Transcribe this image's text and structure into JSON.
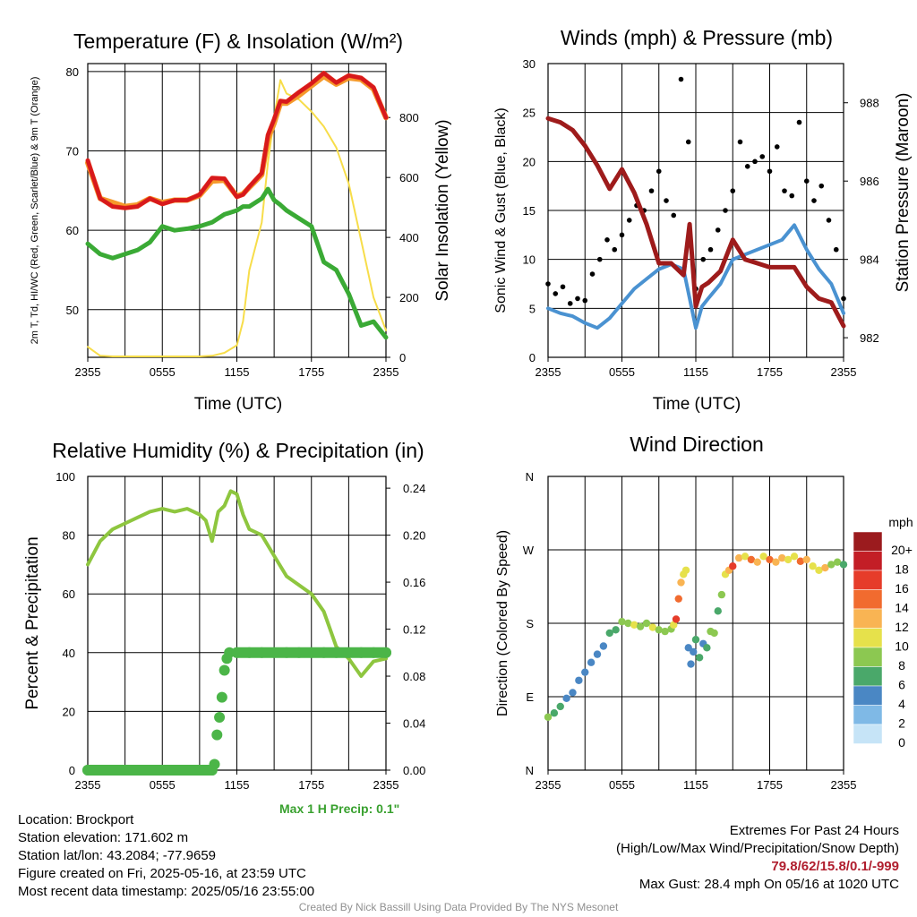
{
  "station": {
    "location": "Location: Brockport",
    "elevation": "Station elevation: 171.602 m",
    "latlon": "Station lat/lon: 43.2084; -77.9659",
    "created": "Figure created on Fri, 2025-05-16, at 23:59 UTC",
    "recent": "Most recent data timestamp: 2025/05/16 23:55:00"
  },
  "extremes": {
    "title": "Extremes For Past 24 Hours",
    "subtitle": "(High/Low/Max Wind/Precipitation/Snow Depth)",
    "values": "79.8/62/15.8/0.1/-999",
    "gust": "Max Gust: 28.4 mph On 05/16 at 1020 UTC"
  },
  "credit": "Created By Nick Bassill Using Data Provided By The NYS Mesonet",
  "colors": {
    "temp": "#d7191c",
    "dew": "#3aaa35",
    "hiwc": "#e8341c",
    "t9": "#f59a2c",
    "solar": "#f7dd4a",
    "wind": "#4a92d1",
    "gust": "#000000",
    "pressure": "#9e1b1b",
    "rh": "#8ec63f",
    "precip": "#4bb548",
    "extremes": "#b01e2e"
  },
  "chart_data": [
    {
      "type": "line",
      "title": "Temperature (F) & Insolation (W/m²)",
      "xlabel": "Time (UTC)",
      "ylabel_left": "2m T, Td, HI/WC (Red, Green, Scarlet/Blue) & 9m T (Orange)",
      "ylabel_right": "Solar Insolation (Yellow)",
      "x_ticks": [
        "2355",
        "0555",
        "1155",
        "1755",
        "2355"
      ],
      "x": [
        0,
        1,
        2,
        3,
        4,
        5,
        6,
        7,
        8,
        9,
        10,
        11,
        12,
        12.5,
        13,
        14,
        14.5,
        15,
        15.5,
        16,
        17,
        18,
        19,
        20,
        21,
        22,
        23,
        24
      ],
      "ylim_left": [
        44,
        81
      ],
      "yticks_left": [
        50,
        60,
        70,
        80
      ],
      "ylim_right": [
        0,
        980
      ],
      "yticks_right": [
        0,
        200,
        400,
        600,
        800
      ],
      "series": [
        {
          "name": "2m T",
          "axis": "left",
          "values": [
            68.8,
            64,
            63,
            62.8,
            63,
            64,
            63.3,
            63.8,
            63.8,
            64.5,
            66.6,
            66.5,
            64.2,
            64.5,
            65.5,
            67.2,
            72,
            74,
            76.3,
            76.2,
            77.4,
            78.5,
            79.8,
            78.6,
            79.5,
            79.2,
            78,
            74.2
          ]
        },
        {
          "name": "2m Td",
          "axis": "left",
          "values": [
            58.3,
            57,
            56.5,
            57,
            57.5,
            58.5,
            60.5,
            60,
            60.2,
            60.5,
            61,
            62,
            62.5,
            63,
            63,
            64,
            65.2,
            63.8,
            63.2,
            62.5,
            61.5,
            60.5,
            56,
            55,
            52,
            48,
            48.5,
            46.5
          ]
        },
        {
          "name": "HI/WC",
          "axis": "left",
          "values": [
            68.8,
            64,
            63,
            62.8,
            63,
            64,
            63.3,
            63.8,
            63.8,
            64.5,
            66.6,
            66.5,
            64.2,
            64.5,
            65.5,
            67.2,
            72,
            74,
            76.3,
            76.2,
            77.4,
            78.5,
            79.8,
            78.6,
            79.5,
            79.2,
            78,
            74.2
          ]
        },
        {
          "name": "9m T",
          "axis": "left",
          "values": [
            68.5,
            64,
            63.5,
            63,
            63.2,
            64,
            63.5,
            63.8,
            63.8,
            64.4,
            66.2,
            66.3,
            64.3,
            64.6,
            65.4,
            67,
            71.5,
            73.5,
            76,
            76,
            77,
            78.2,
            79.4,
            78.4,
            79.2,
            79,
            77.8,
            74.2
          ]
        },
        {
          "name": "Solar Insolation",
          "axis": "right",
          "values": [
            35,
            5,
            3,
            3,
            3,
            3,
            3,
            3,
            3,
            3,
            5,
            15,
            40,
            120,
            290,
            450,
            650,
            800,
            925,
            880,
            860,
            820,
            770,
            700,
            580,
            390,
            200,
            90
          ]
        }
      ]
    },
    {
      "type": "line",
      "title": "Winds (mph) & Pressure (mb)",
      "xlabel": "Time (UTC)",
      "ylabel_left": "Sonic Wind & Gust (Blue, Black)",
      "ylabel_right": "Station Pressure (Maroon)",
      "x_ticks": [
        "2355",
        "0555",
        "1155",
        "1755",
        "2355"
      ],
      "ylim_left": [
        0,
        30
      ],
      "yticks_left": [
        0,
        5,
        10,
        15,
        20,
        25,
        30
      ],
      "ylim_right": [
        981.5,
        989.0
      ],
      "yticks_right": [
        982,
        984,
        986,
        988
      ],
      "series": [
        {
          "name": "Sonic Wind",
          "axis": "left",
          "x": [
            0,
            1,
            2,
            3,
            4,
            5,
            6,
            7,
            8,
            9,
            10,
            11,
            12,
            12.5,
            13,
            14,
            15,
            16,
            17,
            18,
            19,
            20,
            21,
            22,
            23,
            24
          ],
          "values": [
            5,
            4.5,
            4.2,
            3.5,
            3,
            4,
            5.5,
            7,
            8,
            9,
            9.5,
            9,
            3,
            5.2,
            6,
            7.5,
            10,
            10.5,
            11,
            11.5,
            12,
            13.5,
            11,
            9,
            7.5,
            4.5
          ]
        },
        {
          "name": "Gust",
          "axis": "left",
          "mode": "points",
          "x": [
            0,
            0.6,
            1.2,
            1.8,
            2.4,
            3.0,
            3.6,
            4.2,
            4.8,
            5.4,
            6.0,
            6.6,
            7.2,
            7.8,
            8.4,
            9.0,
            9.6,
            10.2,
            10.8,
            11.4,
            12.0,
            12.6,
            13.2,
            13.8,
            14.4,
            15.0,
            15.6,
            16.2,
            16.8,
            17.4,
            18.0,
            18.6,
            19.2,
            19.8,
            20.4,
            21.0,
            21.6,
            22.2,
            22.8,
            23.4,
            24.0
          ],
          "values": [
            7.5,
            6.5,
            7.2,
            5.5,
            6,
            5.8,
            8.5,
            10,
            12,
            11,
            12.5,
            14,
            15.5,
            15,
            17,
            19,
            16,
            14.5,
            28.4,
            22,
            7,
            10,
            11,
            13,
            15,
            17,
            22,
            19.5,
            20,
            20.5,
            19,
            21.5,
            17,
            16.5,
            24,
            18,
            16,
            17.5,
            14,
            11,
            6
          ]
        },
        {
          "name": "Station Pressure",
          "axis": "right",
          "x": [
            0,
            1,
            2,
            3,
            4,
            5,
            6,
            7,
            8,
            9,
            10,
            11,
            11.5,
            12,
            12.5,
            13,
            14,
            15,
            16,
            17,
            18,
            19,
            20,
            21,
            22,
            23,
            24
          ],
          "values": [
            987.6,
            987.5,
            987.3,
            986.9,
            986.4,
            985.8,
            986.3,
            985.7,
            984.9,
            983.9,
            983.9,
            983.6,
            984.9,
            982.8,
            983.3,
            983.4,
            983.7,
            984.5,
            984.0,
            983.9,
            983.8,
            983.8,
            983.8,
            983.3,
            983.0,
            982.9,
            982.3
          ]
        }
      ]
    },
    {
      "type": "line",
      "title": "Relative Humidity (%) & Precipitation (in)",
      "ylabel_left": "Percent & Precipitation",
      "x_ticks": [
        "2355",
        "0555",
        "1155",
        "1755",
        "2355"
      ],
      "ylim_left": [
        0,
        100
      ],
      "yticks_left": [
        0,
        20,
        40,
        60,
        80,
        100
      ],
      "ylim_right": [
        0,
        0.25
      ],
      "yticks_right": [
        "0.00",
        "0.04",
        "0.08",
        "0.12",
        "0.16",
        "0.20",
        "0.24"
      ],
      "max_precip_label": "Max 1 H Precip: 0.1\"",
      "series": [
        {
          "name": "Relative Humidity",
          "axis": "left",
          "x": [
            0,
            1,
            2,
            3,
            4,
            5,
            6,
            7,
            8,
            9,
            9.5,
            10,
            10.5,
            11,
            11.5,
            12,
            12.5,
            13,
            14,
            15,
            16,
            17,
            18,
            19,
            19.5,
            20,
            21,
            22,
            23,
            24
          ],
          "values": [
            70,
            78,
            82,
            84,
            86,
            88,
            89,
            88,
            89,
            87,
            85,
            78,
            88,
            90,
            95,
            94,
            87,
            82,
            80,
            73,
            66,
            63,
            60,
            54,
            48,
            42,
            38,
            32,
            37,
            38
          ]
        },
        {
          "name": "Precipitation",
          "axis": "right",
          "mode": "points",
          "x": [
            0,
            1,
            2,
            3,
            4,
            5,
            6,
            7,
            8,
            9,
            10,
            10.2,
            10.4,
            10.6,
            10.8,
            11,
            11.2,
            11.4,
            12,
            13,
            14,
            15,
            16,
            17,
            18,
            19,
            20,
            21,
            22,
            23,
            24
          ],
          "values": [
            0,
            0,
            0,
            0,
            0,
            0,
            0,
            0,
            0,
            0,
            0,
            0.005,
            0.03,
            0.045,
            0.062,
            0.085,
            0.095,
            0.1,
            0.1,
            0.1,
            0.1,
            0.1,
            0.1,
            0.1,
            0.1,
            0.1,
            0.1,
            0.1,
            0.1,
            0.1,
            0.1
          ]
        }
      ]
    },
    {
      "type": "scatter",
      "title": "Wind Direction",
      "ylabel": "Direction (Colored By Speed)",
      "x_ticks": [
        "2355",
        "0555",
        "1155",
        "1755",
        "2355"
      ],
      "y_ticks": [
        "N",
        "E",
        "S",
        "W",
        "N"
      ],
      "ylim": [
        0,
        360
      ],
      "legend_title": "mph",
      "legend_labels": [
        "0",
        "2",
        "4",
        "6",
        "8",
        "10",
        "12",
        "14",
        "16",
        "18",
        "20+"
      ],
      "legend_colors": [
        "#c6e4f7",
        "#7fb9e6",
        "#4a87c4",
        "#4aa86a",
        "#8cc851",
        "#e6e14b",
        "#f9b453",
        "#f16b2f",
        "#e63c2a",
        "#c31e26",
        "#9b1b1e"
      ],
      "x": [
        0,
        0.5,
        1,
        1.5,
        2,
        2.5,
        3,
        3.5,
        4,
        4.5,
        5,
        5.5,
        6,
        6.5,
        7,
        7.5,
        8,
        8.5,
        9,
        9.5,
        10,
        10.2,
        10.4,
        10.6,
        10.8,
        11,
        11.2,
        11.4,
        11.6,
        11.8,
        12,
        12.3,
        12.6,
        12.9,
        13.2,
        13.5,
        13.8,
        14.1,
        14.4,
        14.7,
        15,
        15.5,
        16,
        16.5,
        17,
        17.5,
        18,
        18.5,
        19,
        19.5,
        20,
        20.5,
        21,
        21.5,
        22,
        22.5,
        23,
        23.5,
        24
      ],
      "values": [
        65,
        70,
        78,
        88,
        95,
        110,
        120,
        132,
        142,
        152,
        168,
        172,
        182,
        180,
        178,
        176,
        180,
        175,
        172,
        170,
        173,
        178,
        185,
        210,
        230,
        240,
        245,
        150,
        130,
        145,
        160,
        138,
        155,
        150,
        170,
        168,
        195,
        215,
        240,
        245,
        250,
        260,
        262,
        258,
        255,
        262,
        258,
        255,
        260,
        258,
        262,
        256,
        258,
        250,
        245,
        248,
        252,
        255,
        252
      ],
      "speeds": [
        8,
        6,
        5,
        4,
        3,
        4,
        3,
        3,
        4,
        4,
        5,
        6,
        7,
        8,
        9,
        8,
        8,
        9,
        8,
        7,
        8,
        10,
        16,
        14,
        12,
        10,
        9,
        3,
        4,
        3,
        5,
        6,
        4,
        5,
        7,
        7,
        6,
        8,
        9,
        12,
        15,
        12,
        10,
        14,
        11,
        10,
        14,
        12,
        11,
        9,
        10,
        13,
        12,
        10,
        9,
        11,
        8,
        7,
        6
      ]
    }
  ]
}
